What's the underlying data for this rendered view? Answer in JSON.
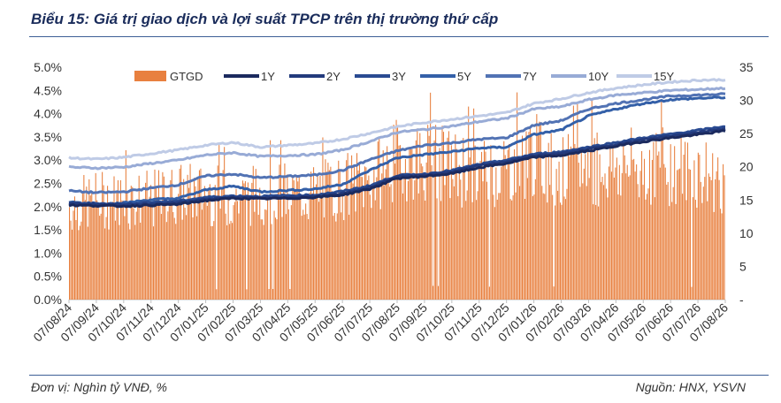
{
  "header": {
    "title": "Biểu 15: Giá trị giao dịch và lợi suất TPCP trên thị trường thứ cấp"
  },
  "footer": {
    "unit": "Đơn vị: Nghìn tỷ VNĐ, %",
    "source": "Nguồn: HNX, YSVN"
  },
  "chart_data": {
    "type": "bar+line",
    "title": "Biểu 15: Giá trị giao dịch và lợi suất TPCP trên thị trường thứ cấp",
    "x_ticks": [
      "07/08/24",
      "07/09/24",
      "07/10/24",
      "07/11/24",
      "07/12/24",
      "07/01/25",
      "07/02/25",
      "07/03/25",
      "07/04/25",
      "07/05/25",
      "07/06/25",
      "07/07/25",
      "07/08/25",
      "07/09/25",
      "07/10/25",
      "07/11/25",
      "07/12/25",
      "07/01/26",
      "07/02/26",
      "07/03/26",
      "07/04/26",
      "07/05/26",
      "07/06/26",
      "07/07/26",
      "07/08/26"
    ],
    "y_left": {
      "ticks": [
        "0.0%",
        "0.5%",
        "1.0%",
        "1.5%",
        "2.0%",
        "2.5%",
        "3.0%",
        "3.5%",
        "4.0%",
        "4.5%",
        "5.0%"
      ],
      "min": 0,
      "max": 5.0,
      "unit": "%"
    },
    "y_right": {
      "ticks": [
        "-",
        "5",
        "10",
        "15",
        "20",
        "25",
        "30",
        "35"
      ],
      "min": 0,
      "max": 35
    },
    "legend_position": "top",
    "bar_series": {
      "name": "GTGD",
      "color": "#e8803f",
      "axis": "right",
      "monthly_avg": [
        14,
        15,
        15,
        15,
        16,
        16,
        15,
        16,
        16,
        16,
        17,
        18,
        21,
        21,
        20,
        19,
        20,
        22,
        19,
        20,
        20,
        20,
        20,
        19,
        18
      ]
    },
    "line_series": [
      {
        "name": "1Y",
        "color": "#1b2a5e",
        "axis": "left",
        "values": [
          2.03,
          2.02,
          2.01,
          2.03,
          2.05,
          2.13,
          2.18,
          2.17,
          2.18,
          2.2,
          2.25,
          2.38,
          2.61,
          2.65,
          2.71,
          2.84,
          2.93,
          3.06,
          3.1,
          3.2,
          3.3,
          3.4,
          3.48,
          3.55,
          3.63
        ]
      },
      {
        "name": "2Y",
        "color": "#233a7c",
        "axis": "left",
        "values": [
          2.06,
          2.05,
          2.04,
          2.06,
          2.09,
          2.16,
          2.2,
          2.19,
          2.2,
          2.22,
          2.28,
          2.42,
          2.64,
          2.68,
          2.75,
          2.88,
          2.97,
          3.1,
          3.14,
          3.24,
          3.34,
          3.44,
          3.52,
          3.6,
          3.68
        ]
      },
      {
        "name": "3Y",
        "color": "#2a4b92",
        "axis": "left",
        "values": [
          2.08,
          2.07,
          2.06,
          2.1,
          2.12,
          2.2,
          2.23,
          2.22,
          2.24,
          2.25,
          2.33,
          2.45,
          2.67,
          2.7,
          2.78,
          2.91,
          3.0,
          3.13,
          3.18,
          3.28,
          3.38,
          3.48,
          3.56,
          3.64,
          3.73
        ]
      },
      {
        "name": "5Y",
        "color": "#3460a8",
        "axis": "left",
        "values": [
          2.1,
          2.05,
          2.08,
          2.15,
          2.18,
          2.36,
          2.44,
          2.32,
          2.35,
          2.38,
          2.48,
          2.78,
          3.05,
          3.12,
          3.18,
          3.26,
          3.28,
          3.55,
          3.65,
          3.95,
          4.1,
          4.22,
          4.3,
          4.33,
          4.35
        ]
      },
      {
        "name": "7Y",
        "color": "#5273b4",
        "axis": "left",
        "values": [
          2.34,
          2.3,
          2.32,
          2.4,
          2.47,
          2.66,
          2.7,
          2.62,
          2.65,
          2.68,
          2.78,
          3.01,
          3.2,
          3.32,
          3.37,
          3.45,
          3.48,
          3.75,
          3.85,
          4.1,
          4.22,
          4.3,
          4.38,
          4.4,
          4.42
        ]
      },
      {
        "name": "10Y",
        "color": "#98abd6",
        "axis": "left",
        "values": [
          2.85,
          2.83,
          2.85,
          2.93,
          3.0,
          3.11,
          3.16,
          3.08,
          3.1,
          3.12,
          3.22,
          3.4,
          3.6,
          3.66,
          3.73,
          3.83,
          3.9,
          4.1,
          4.15,
          4.3,
          4.4,
          4.45,
          4.5,
          4.52,
          4.55
        ]
      },
      {
        "name": "15Y",
        "color": "#bfcbe6",
        "axis": "left",
        "values": [
          3.05,
          3.02,
          3.06,
          3.14,
          3.22,
          3.32,
          3.38,
          3.28,
          3.32,
          3.36,
          3.45,
          3.58,
          3.72,
          3.81,
          3.88,
          3.95,
          4.02,
          4.22,
          4.32,
          4.45,
          4.55,
          4.62,
          4.68,
          4.72,
          4.73
        ]
      }
    ]
  }
}
